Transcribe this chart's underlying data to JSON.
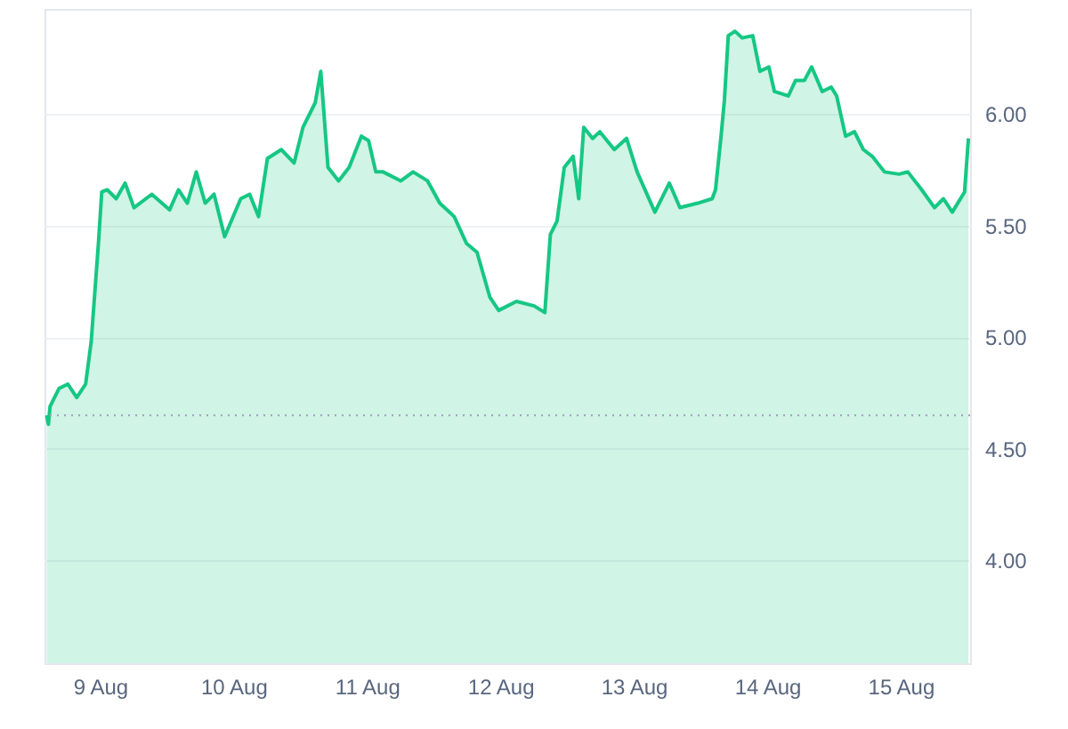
{
  "chart_data": {
    "type": "area",
    "xlim": [
      "--08-08T14:00",
      "--08-15T12:30"
    ],
    "xticks": [
      {
        "value": "--08-09",
        "label": "9 Aug"
      },
      {
        "value": "--08-10",
        "label": "10 Aug"
      },
      {
        "value": "--08-11",
        "label": "11 Aug"
      },
      {
        "value": "--08-12",
        "label": "12 Aug"
      },
      {
        "value": "--08-13",
        "label": "13 Aug"
      },
      {
        "value": "--08-14",
        "label": "14 Aug"
      },
      {
        "value": "--08-15",
        "label": "15 Aug"
      }
    ],
    "ylim": [
      3.54,
      6.47
    ],
    "yticks": [
      {
        "value": 4,
        "label": "4.00"
      },
      {
        "value": 4.5,
        "label": "4.50"
      },
      {
        "value": 5,
        "label": "5.00"
      },
      {
        "value": 5.5,
        "label": "5.50"
      },
      {
        "value": 6,
        "label": "6.00"
      }
    ],
    "grid": "y",
    "ref_lines": [
      {
        "axis": "y",
        "value": 4.65,
        "color": "#a1a7bb",
        "line_style": "dotted"
      }
    ],
    "series": [
      {
        "color": "#16c784",
        "x": [
          "--08-08T14:24",
          "--08-08T14:42",
          "--08-08T15:00",
          "--08-08T16:36",
          "--08-08T18:12",
          "--08-08T19:48",
          "--08-08T21:24",
          "--08-08T22:24",
          "--08-08T23:42",
          "--08-09T00:18",
          "--08-09T01:18",
          "--08-09T02:54",
          "--08-09T04:30",
          "--08-09T06:06",
          "--08-09T09:18",
          "--08-09T12:30",
          "--08-09T14:06",
          "--08-09T15:42",
          "--08-09T17:18",
          "--08-09T18:54",
          "--08-09T20:30",
          "--08-09T22:24",
          "--08-10T01:18",
          "--08-10T02:54",
          "--08-10T04:30",
          "--08-10T06:06",
          "--08-10T08:36",
          "--08-10T10:54",
          "--08-10T12:30",
          "--08-10T14:42",
          "--08-10T15:42",
          "--08-10T17:00",
          "--08-10T18:54",
          "--08-10T20:48",
          "--08-10T23:00",
          "--08-11T00:18",
          "--08-11T01:36",
          "--08-11T02:54",
          "--08-11T06:06",
          "--08-11T08:18",
          "--08-11T10:54",
          "--08-11T13:06",
          "--08-11T15:42",
          "--08-11T17:54",
          "--08-11T19:48",
          "--08-11T22:06",
          "--08-11T23:42",
          "--08-12T02:54",
          "--08-12T06:06",
          "--08-12T08:00",
          "--08-12T09:00",
          "--08-12T10:12",
          "--08-12T11:30",
          "--08-12T13:06",
          "--08-12T14:06",
          "--08-12T15:00",
          "--08-12T16:36",
          "--08-12T17:54",
          "--08-12T20:30",
          "--08-12T22:42",
          "--08-13T00:36",
          "--08-13T03:48",
          "--08-13T06:24",
          "--08-13T08:18",
          "--08-13T11:30",
          "--08-13T14:06",
          "--08-13T14:42",
          "--08-13T15:42",
          "--08-13T16:18",
          "--08-13T17:00",
          "--08-13T18:12",
          "--08-13T19:30",
          "--08-13T21:24",
          "--08-13T22:42",
          "--08-14T00:18",
          "--08-14T01:18",
          "--08-14T03:48",
          "--08-14T05:06",
          "--08-14T06:42",
          "--08-14T08:00",
          "--08-14T09:54",
          "--08-14T11:30",
          "--08-14T12:30",
          "--08-14T14:06",
          "--08-14T15:42",
          "--08-14T17:18",
          "--08-14T18:54",
          "--08-14T21:06",
          "--08-14T23:42",
          "--08-15T01:18",
          "--08-15T03:48",
          "--08-15T06:06",
          "--08-15T07:42",
          "--08-15T09:18",
          "--08-15T11:30",
          "--08-15T12:12"
        ],
        "values": [
          4.65,
          4.61,
          4.69,
          4.77,
          4.79,
          4.73,
          4.79,
          4.98,
          5.42,
          5.65,
          5.66,
          5.62,
          5.69,
          5.58,
          5.64,
          5.57,
          5.66,
          5.6,
          5.74,
          5.6,
          5.64,
          5.45,
          5.62,
          5.64,
          5.54,
          5.8,
          5.84,
          5.78,
          5.94,
          6.05,
          6.19,
          5.76,
          5.7,
          5.76,
          5.9,
          5.88,
          5.74,
          5.74,
          5.7,
          5.74,
          5.7,
          5.6,
          5.54,
          5.42,
          5.38,
          5.18,
          5.12,
          5.16,
          5.14,
          5.11,
          5.46,
          5.52,
          5.76,
          5.81,
          5.62,
          5.94,
          5.89,
          5.92,
          5.84,
          5.89,
          5.74,
          5.56,
          5.69,
          5.58,
          5.6,
          5.62,
          5.66,
          5.9,
          6.06,
          6.35,
          6.37,
          6.34,
          6.35,
          6.19,
          6.21,
          6.1,
          6.08,
          6.15,
          6.15,
          6.21,
          6.1,
          6.12,
          6.08,
          5.9,
          5.92,
          5.84,
          5.81,
          5.74,
          5.73,
          5.74,
          5.66,
          5.58,
          5.62,
          5.56,
          5.65,
          5.89
        ]
      }
    ]
  }
}
